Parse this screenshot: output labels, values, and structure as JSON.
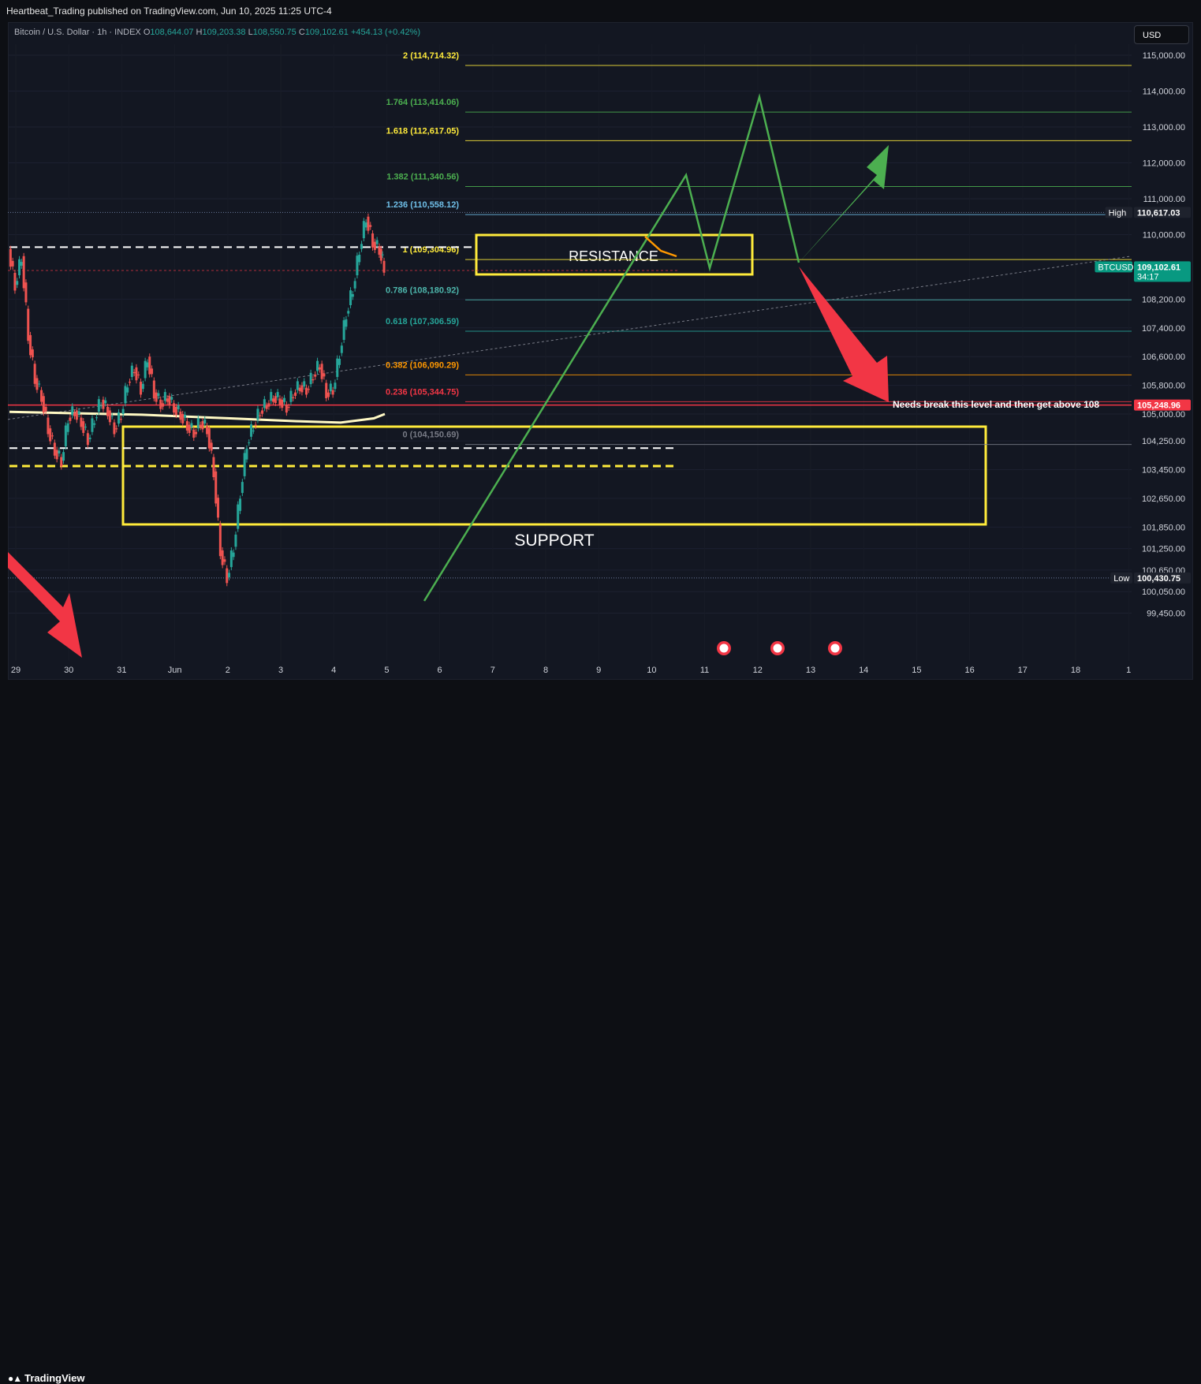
{
  "header": {
    "published_text": "Heartbeat_Trading published on TradingView.com, Jun 10, 2025 11:25 UTC-4"
  },
  "legend": {
    "symbol_text": "Bitcoin / U.S. Dollar · 1h · INDEX",
    "open_label": "O",
    "open_value": "108,644.07",
    "high_label": "H",
    "high_value": "109,203.38",
    "low_label": "L",
    "low_value": "108,550.75",
    "close_label": "C",
    "close_value": "109,102.61",
    "change_value": "+454.13 (+0.42%)"
  },
  "currency_button": "USD",
  "footer": {
    "brand": "TradingView"
  },
  "colors": {
    "background": "#131722",
    "up": "#26a69a",
    "down": "#ef5350",
    "zone": "#ffeb3b",
    "projection": "#4caf50",
    "arrow_down": "#f23645",
    "price_tag": "#089981"
  },
  "chart_data": {
    "type": "line",
    "symbol": "BTCUSD",
    "timeframe": "1h",
    "x_ticks": [
      "29",
      "30",
      "31",
      "Jun",
      "2",
      "3",
      "4",
      "5",
      "6",
      "7",
      "8",
      "9",
      "10",
      "11",
      "12",
      "13",
      "14",
      "15",
      "16",
      "17",
      "18",
      "1"
    ],
    "y_ticks": [
      "115,000.00",
      "114,000.00",
      "113,000.00",
      "112,000.00",
      "111,000.00",
      "110,000.00",
      "108,200.00",
      "107,400.00",
      "106,600.00",
      "105,800.00",
      "105,000.00",
      "104,250.00",
      "103,450.00",
      "102,650.00",
      "101,850.00",
      "101,250.00",
      "100,650.00",
      "100,050.00",
      "99,450.00"
    ],
    "ylim": [
      99200,
      115400
    ],
    "fib_levels": [
      {
        "label": "2 (114,714.32)",
        "value": 114714.32,
        "color": "#ffeb3b"
      },
      {
        "label": "1.764 (113,414.06)",
        "value": 113414.06,
        "color": "#4caf50"
      },
      {
        "label": "1.618 (112,617.05)",
        "value": 112617.05,
        "color": "#ffeb3b"
      },
      {
        "label": "1.382 (111,340.56)",
        "value": 111340.56,
        "color": "#4caf50"
      },
      {
        "label": "1.236 (110,558.12)",
        "value": 110558.12,
        "color": "#6fbfe8"
      },
      {
        "label": "1 (109,304.96)",
        "value": 109304.96,
        "color": "#ffeb3b"
      },
      {
        "label": "0.786 (108,180.92)",
        "value": 108180.92,
        "color": "#4db6ac"
      },
      {
        "label": "0.618 (107,306.59)",
        "value": 107306.59,
        "color": "#26a69a"
      },
      {
        "label": "0.382 (106,090.29)",
        "value": 106090.29,
        "color": "#ff9800"
      },
      {
        "label": "0.236 (105,344.75)",
        "value": 105344.75,
        "color": "#f23645"
      },
      {
        "label": "0 (104,150.69)",
        "value": 104150.69,
        "color": "#787b86"
      }
    ],
    "price_tags": [
      {
        "label": "High",
        "value_text": "110,617.03",
        "value": 110617.03
      },
      {
        "label": "BTCUSD",
        "value_text": "109,102.61",
        "sub": "34:17",
        "value": 109102.61
      },
      {
        "label": "",
        "value_text": "105,248.96",
        "value": 105248.96
      },
      {
        "label": "Low",
        "value_text": "100,430.75",
        "value": 100430.75
      }
    ],
    "annotations": {
      "resistance": "RESISTANCE",
      "support": "SUPPORT",
      "note": "Needs break this level and then get above 108"
    },
    "price_path": [
      [
        0,
        109600
      ],
      [
        3,
        108600
      ],
      [
        6,
        109400
      ],
      [
        9,
        107200
      ],
      [
        12,
        106000
      ],
      [
        15,
        105500
      ],
      [
        18,
        104600
      ],
      [
        21,
        104000
      ],
      [
        24,
        103700
      ],
      [
        27,
        104900
      ],
      [
        30,
        105100
      ],
      [
        33,
        104800
      ],
      [
        36,
        104300
      ],
      [
        39,
        104900
      ],
      [
        42,
        105400
      ],
      [
        45,
        105100
      ],
      [
        48,
        104600
      ],
      [
        51,
        105000
      ],
      [
        54,
        105900
      ],
      [
        57,
        106300
      ],
      [
        60,
        105700
      ],
      [
        63,
        106600
      ],
      [
        66,
        105600
      ],
      [
        69,
        105300
      ],
      [
        72,
        105500
      ],
      [
        75,
        105200
      ],
      [
        78,
        105000
      ],
      [
        81,
        104700
      ],
      [
        84,
        104500
      ],
      [
        87,
        104800
      ],
      [
        90,
        104600
      ],
      [
        93,
        103400
      ],
      [
        96,
        101200
      ],
      [
        99,
        100450
      ],
      [
        102,
        101300
      ],
      [
        105,
        102800
      ],
      [
        108,
        104200
      ],
      [
        111,
        104700
      ],
      [
        114,
        105100
      ],
      [
        117,
        105300
      ],
      [
        120,
        105500
      ],
      [
        123,
        105400
      ],
      [
        126,
        105200
      ],
      [
        129,
        105600
      ],
      [
        132,
        105800
      ],
      [
        135,
        105700
      ],
      [
        138,
        106100
      ],
      [
        141,
        106400
      ],
      [
        144,
        105600
      ],
      [
        147,
        105700
      ],
      [
        150,
        106700
      ],
      [
        153,
        107800
      ],
      [
        156,
        108500
      ],
      [
        159,
        109600
      ],
      [
        162,
        110500
      ],
      [
        165,
        109800
      ],
      [
        168,
        109600
      ],
      [
        170,
        109100
      ]
    ]
  }
}
